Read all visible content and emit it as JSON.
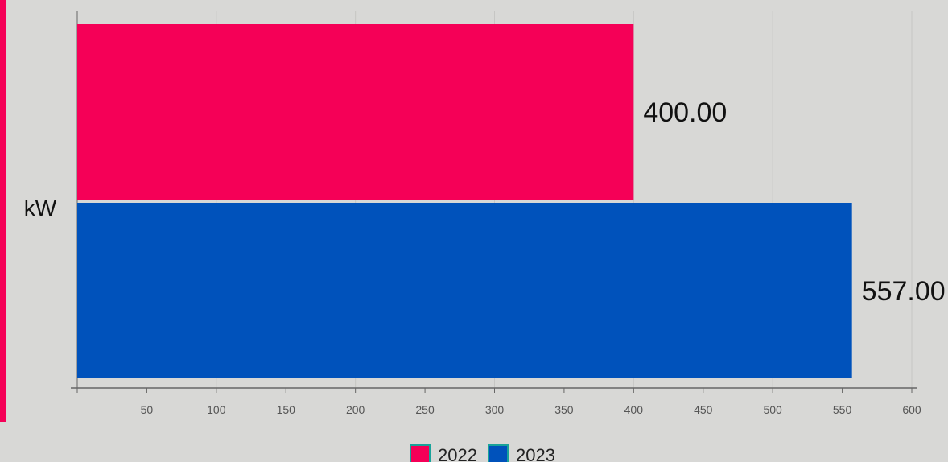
{
  "chart_data": {
    "type": "bar",
    "orientation": "horizontal",
    "categories": [
      "kW"
    ],
    "series": [
      {
        "name": "2022",
        "values": [
          400.0
        ],
        "value_label": "400.00",
        "color": "#f50057"
      },
      {
        "name": "2023",
        "values": [
          557.0
        ],
        "value_label": "557.00",
        "color": "#0052bb"
      }
    ],
    "xlim": [
      0,
      600
    ],
    "x_ticks": [
      50,
      100,
      150,
      200,
      250,
      300,
      350,
      400,
      450,
      500,
      550,
      600
    ],
    "grid": true,
    "legend": "bottom-center"
  },
  "colors": {
    "accent": "#f50057",
    "background": "#d8d8d6",
    "grid": "#c6c6c4",
    "axis": "#666666",
    "legend_border": "#18a39a"
  }
}
